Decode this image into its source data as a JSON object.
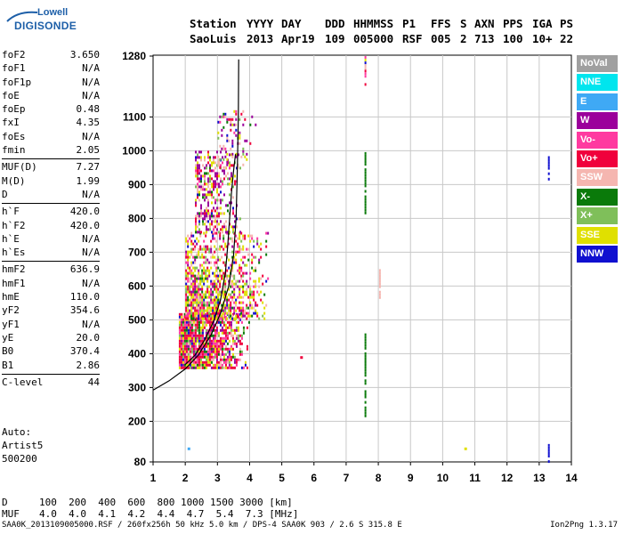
{
  "logo": {
    "line1": "Lowell",
    "line2": "DIGISONDE"
  },
  "header": {
    "row1": [
      "Station",
      "YYYY",
      "DAY",
      "DDD",
      "HHMMSS",
      "P1",
      "FFS",
      "S",
      "AXN",
      "PPS",
      "IGA",
      "PS"
    ],
    "row2": [
      "SaoLuis",
      "2013",
      "Apr19",
      "109",
      "005000",
      "RSF",
      "005",
      "2",
      "713",
      "100",
      "10+",
      "22"
    ]
  },
  "params_group1": [
    {
      "k": "foF2",
      "v": "3.650"
    },
    {
      "k": "foF1",
      "v": "N/A"
    },
    {
      "k": "foF1p",
      "v": "N/A"
    },
    {
      "k": "foE",
      "v": "N/A"
    },
    {
      "k": "foEp",
      "v": "0.48"
    },
    {
      "k": "fxI",
      "v": "4.35"
    },
    {
      "k": "foEs",
      "v": "N/A"
    },
    {
      "k": "fmin",
      "v": "2.05"
    }
  ],
  "params_group2": [
    {
      "k": "MUF(D)",
      "v": "7.27"
    },
    {
      "k": "M(D)",
      "v": "1.99"
    },
    {
      "k": "D",
      "v": "N/A"
    }
  ],
  "params_group3": [
    {
      "k": "h`F",
      "v": "420.0"
    },
    {
      "k": "h`F2",
      "v": "420.0"
    },
    {
      "k": "h`E",
      "v": "N/A"
    },
    {
      "k": "h`Es",
      "v": "N/A"
    }
  ],
  "params_group4": [
    {
      "k": "hmF2",
      "v": "636.9"
    },
    {
      "k": "hmF1",
      "v": "N/A"
    },
    {
      "k": "hmE",
      "v": "110.0"
    },
    {
      "k": "yF2",
      "v": "354.6"
    },
    {
      "k": "yF1",
      "v": "N/A"
    },
    {
      "k": "yE",
      "v": "20.0"
    },
    {
      "k": "B0",
      "v": "370.4"
    },
    {
      "k": "B1",
      "v": "2.86"
    }
  ],
  "params_group5": [
    {
      "k": "C-level",
      "v": "44"
    }
  ],
  "auto": {
    "line1": "Auto:",
    "line2": "Artist5",
    "line3": "500200"
  },
  "muf_table": {
    "d_label": "D",
    "d_values": "100  200  400  600  800 1000 1500 3000 [km]",
    "muf_label": "MUF",
    "muf_values": "4.0  4.0  4.1  4.2  4.4  4.7  5.4  7.3 [MHz]"
  },
  "footer": {
    "left": "SAA0K_2013109005000.RSF / 260fx256h 50 kHz 5.0 km / DPS-4 SAA0K 903 / 2.6 S 315.8 E",
    "right": "Ion2Png 1.3.17"
  },
  "legend": [
    {
      "label": "NoVal",
      "color": "#a0a0a0"
    },
    {
      "label": "NNE",
      "color": "#00e5ee"
    },
    {
      "label": "E",
      "color": "#3fa9f5"
    },
    {
      "label": "W",
      "color": "#9b009b"
    },
    {
      "label": "Vo-",
      "color": "#ff3aa0"
    },
    {
      "label": "Vo+",
      "color": "#f0003c"
    },
    {
      "label": "SSW",
      "color": "#f5b6b0"
    },
    {
      "label": "X-",
      "color": "#0a7a0a"
    },
    {
      "label": "X+",
      "color": "#7fbf5a"
    },
    {
      "label": "SSE",
      "color": "#e0e000"
    },
    {
      "label": "NNW",
      "color": "#1010d0"
    }
  ],
  "chart_data": {
    "type": "scatter",
    "xlabel": "",
    "ylabel": "",
    "x_unit": "MHz",
    "y_unit": "km",
    "xlim": [
      1,
      14
    ],
    "ylim": [
      80,
      1290
    ],
    "xticks": [
      1,
      2,
      3,
      4,
      5,
      6,
      7,
      8,
      9,
      10,
      11,
      12,
      13,
      14
    ],
    "yticks": [
      80,
      200,
      300,
      400,
      500,
      600,
      700,
      800,
      900,
      1000,
      1100,
      1280
    ],
    "grid": true,
    "legend_position": "right",
    "profile_curve": [
      [
        1,
        292
      ],
      [
        1.5,
        320
      ],
      [
        2.0,
        355
      ],
      [
        2.4,
        395
      ],
      [
        2.8,
        455
      ],
      [
        3.1,
        520
      ],
      [
        3.35,
        600
      ],
      [
        3.5,
        690
      ],
      [
        3.58,
        800
      ],
      [
        3.62,
        950
      ],
      [
        3.65,
        1100
      ],
      [
        3.66,
        1270
      ]
    ],
    "trace_curve": [
      [
        2.0,
        368
      ],
      [
        2.3,
        395
      ],
      [
        2.6,
        440
      ],
      [
        2.9,
        500
      ],
      [
        3.1,
        560
      ],
      [
        3.25,
        640
      ],
      [
        3.32,
        720
      ],
      [
        3.38,
        800
      ],
      [
        3.44,
        880
      ],
      [
        3.5,
        940
      ],
      [
        3.56,
        990
      ]
    ],
    "echo_clusters": [
      {
        "x_range": [
          1.8,
          4.0
        ],
        "y_range": [
          355,
          520
        ],
        "density": "high"
      },
      {
        "x_range": [
          2.0,
          4.6
        ],
        "y_range": [
          500,
          760
        ],
        "density": "high"
      },
      {
        "x_range": [
          2.3,
          3.7
        ],
        "y_range": [
          760,
          1000
        ],
        "density": "medium"
      },
      {
        "x_range": [
          3.0,
          4.2
        ],
        "y_range": [
          950,
          1120
        ],
        "density": "low"
      }
    ],
    "isolated_echoes": [
      {
        "x": 7.6,
        "y_range": [
          820,
          1000
        ],
        "color": "X-"
      },
      {
        "x": 7.6,
        "y_range": [
          220,
          460
        ],
        "color": "X-"
      },
      {
        "x": 7.6,
        "y_range": [
          1200,
          1280
        ],
        "color": "mixed"
      },
      {
        "x": 8.05,
        "y_range": [
          570,
          650
        ],
        "color": "SSW"
      },
      {
        "x": 13.3,
        "y_range": [
          920,
          990
        ],
        "color": "NNW"
      },
      {
        "x": 13.3,
        "y_range": [
          85,
          135
        ],
        "color": "NNW"
      },
      {
        "x": 5.6,
        "y": 390,
        "color": "Vo+"
      },
      {
        "x": 2.1,
        "y": 120,
        "color": "E"
      },
      {
        "x": 10.7,
        "y": 120,
        "color": "SSE"
      }
    ]
  }
}
